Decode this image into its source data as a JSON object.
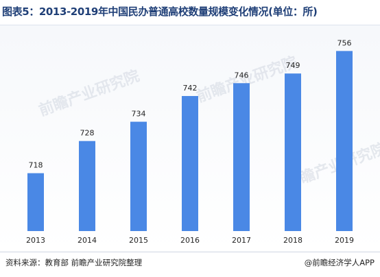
{
  "title": "图表5：2013-2019年中国民办普通高校数量规模变化情况(单位：所)",
  "footer": {
    "source": "资料来源：教育部 前瞻产业研究院整理",
    "brand": "@前瞻经济学人APP"
  },
  "watermark": {
    "text": "前瞻产业研究院"
  },
  "colors": {
    "bar": "#4a88e5",
    "title": "#1f3f77",
    "label": "#222222",
    "watermark": "#d6dbe4"
  },
  "chart_data": {
    "type": "bar",
    "categories": [
      "2013",
      "2014",
      "2015",
      "2016",
      "2017",
      "2018",
      "2019"
    ],
    "values": [
      718,
      728,
      734,
      742,
      746,
      749,
      756
    ],
    "title": "图表5：2013-2019年中国民办普通高校数量规模变化情况(单位：所)",
    "xlabel": "",
    "ylabel": "",
    "ylim": [
      700,
      758
    ],
    "grid": false,
    "legend": "none",
    "data_labels": true
  }
}
